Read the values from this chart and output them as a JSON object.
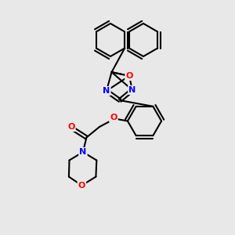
{
  "bg_color": "#e8e8e8",
  "bond_color": "#000000",
  "bond_width": 1.5,
  "atom_colors": {
    "O": "#ff0000",
    "N": "#0000ff",
    "C": "#000000"
  },
  "font_size": 7,
  "figsize": [
    3.0,
    3.0
  ],
  "dpi": 100
}
